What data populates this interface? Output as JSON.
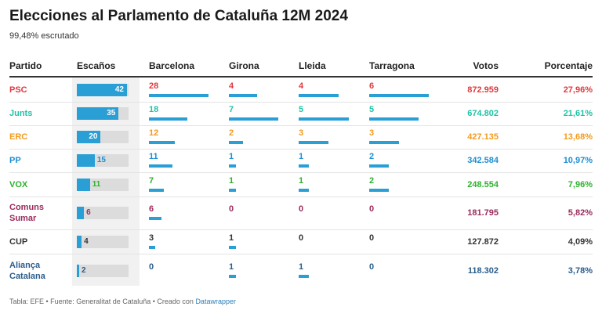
{
  "header": {
    "title": "Elecciones al Parlamento de Cataluña 12M 2024",
    "subtitle": "99,48% escrutado"
  },
  "table": {
    "columns": [
      "Partido",
      "Escaños",
      "Barcelona",
      "Girona",
      "Lleida",
      "Tarragona",
      "Votos",
      "Porcentaje"
    ],
    "bar_color": "#2a9fd6",
    "rows": [
      {
        "party": "PSC",
        "color": "#e0393e",
        "seats": 42,
        "barcelona": 28,
        "girona": 4,
        "lleida": 4,
        "tarragona": 6,
        "votes": "872.959",
        "percent": "27,96%"
      },
      {
        "party": "Junts",
        "color": "#1fc3a6",
        "seats": 35,
        "barcelona": 18,
        "girona": 7,
        "lleida": 5,
        "tarragona": 5,
        "votes": "674.802",
        "percent": "21,61%"
      },
      {
        "party": "ERC",
        "color": "#f29b1d",
        "seats": 20,
        "barcelona": 12,
        "girona": 2,
        "lleida": 3,
        "tarragona": 3,
        "votes": "427.135",
        "percent": "13,68%"
      },
      {
        "party": "PP",
        "color": "#1c8fd3",
        "seats": 15,
        "barcelona": 11,
        "girona": 1,
        "lleida": 1,
        "tarragona": 2,
        "votes": "342.584",
        "percent": "10,97%"
      },
      {
        "party": "VOX",
        "color": "#2eb22e",
        "seats": 11,
        "barcelona": 7,
        "girona": 1,
        "lleida": 1,
        "tarragona": 2,
        "votes": "248.554",
        "percent": "7,96%"
      },
      {
        "party": "Comuns Sumar",
        "color": "#9a2b5b",
        "seats": 6,
        "barcelona": 6,
        "girona": 0,
        "lleida": 0,
        "tarragona": 0,
        "votes": "181.795",
        "percent": "5,82%"
      },
      {
        "party": "CUP",
        "color": "#333333",
        "seats": 4,
        "barcelona": 3,
        "girona": 1,
        "lleida": 0,
        "tarragona": 0,
        "votes": "127.872",
        "percent": "4,09%"
      },
      {
        "party": "Aliança Catalana",
        "color": "#2a5d8a",
        "seats": 2,
        "barcelona": 0,
        "girona": 1,
        "lleida": 1,
        "tarragona": 0,
        "votes": "118.302",
        "percent": "3,78%"
      }
    ]
  },
  "footer": {
    "text": "Tabla: EFE • Fuente: Generalitat de Cataluña • Creado con ",
    "link": "Datawrapper"
  }
}
